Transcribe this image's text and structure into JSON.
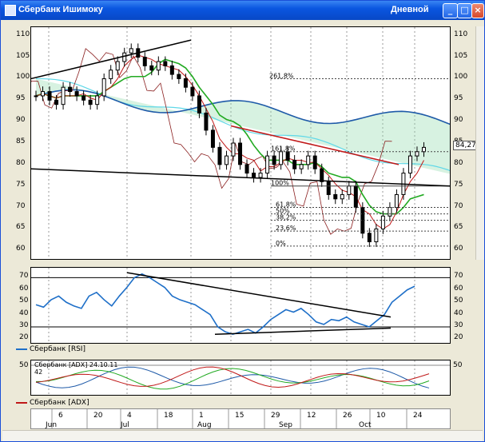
{
  "window": {
    "title": "Сбербанк Ишимоку",
    "period": "Дневной",
    "buttons": {
      "minimize": "_",
      "maximize": "□",
      "close": "×"
    }
  },
  "price_panel": {
    "y_ticks": [
      "110",
      "105",
      "100",
      "95",
      "90",
      "85",
      "80",
      "75",
      "70",
      "65",
      "60"
    ],
    "last_price_label": "84,27",
    "fib_labels": [
      "261,8%",
      "161,8%",
      "100%",
      "61,8%",
      "50%",
      "38,2%",
      "23,6%",
      "0%"
    ]
  },
  "rsi_panel": {
    "legend": "Сбербанк [RSI]",
    "y_ticks": [
      "70",
      "60",
      "50",
      "40",
      "30",
      "20"
    ]
  },
  "adx_panel": {
    "legend": "Сбербанк [ADX]",
    "readout": "Сбербанк [ADX] 24.10.11",
    "readout_value": "42",
    "y_ticks": [
      "50"
    ]
  },
  "time_axis": {
    "days": [
      "6",
      "20",
      "4",
      "18",
      "1",
      "15",
      "29",
      "12",
      "26",
      "10",
      "24"
    ],
    "months": [
      "Jun",
      "Jul",
      "Aug",
      "Sep",
      "Oct"
    ]
  },
  "colors": {
    "rsi": "#1e6fc8",
    "tenkan": "#c01818",
    "kijun": "#22aa22",
    "senkou_a": "#5fd8e8",
    "senkou_b": "#1e5aa8",
    "chikou": "#8a1e1e",
    "cloud": "#8cd9a8"
  },
  "chart_data": [
    {
      "type": "line",
      "title": "Сбербанк Ишимоку",
      "ylim": [
        58,
        112
      ],
      "note_last": 84.27,
      "candles_close": [
        96,
        97,
        95,
        94,
        98,
        97,
        96,
        95,
        94,
        96,
        100,
        102,
        104,
        106,
        107,
        105,
        103,
        102,
        104,
        103,
        101,
        100,
        98,
        96,
        92,
        88,
        84,
        80,
        82,
        85,
        80,
        78,
        77,
        78,
        82,
        80,
        83,
        81,
        79,
        80,
        82,
        79,
        76,
        73,
        72,
        73,
        75,
        70,
        64,
        62,
        65,
        68,
        70,
        73,
        78,
        82,
        83,
        84
      ],
      "rsi": [
        48,
        46,
        52,
        55,
        50,
        47,
        45,
        55,
        58,
        52,
        47,
        55,
        62,
        70,
        73,
        70,
        66,
        62,
        55,
        52,
        50,
        48,
        44,
        40,
        30,
        26,
        24,
        26,
        28,
        25,
        30,
        36,
        40,
        44,
        42,
        45,
        40,
        34,
        32,
        36,
        35,
        38,
        34,
        32,
        30,
        35,
        40,
        50,
        55,
        60,
        63
      ]
    }
  ]
}
